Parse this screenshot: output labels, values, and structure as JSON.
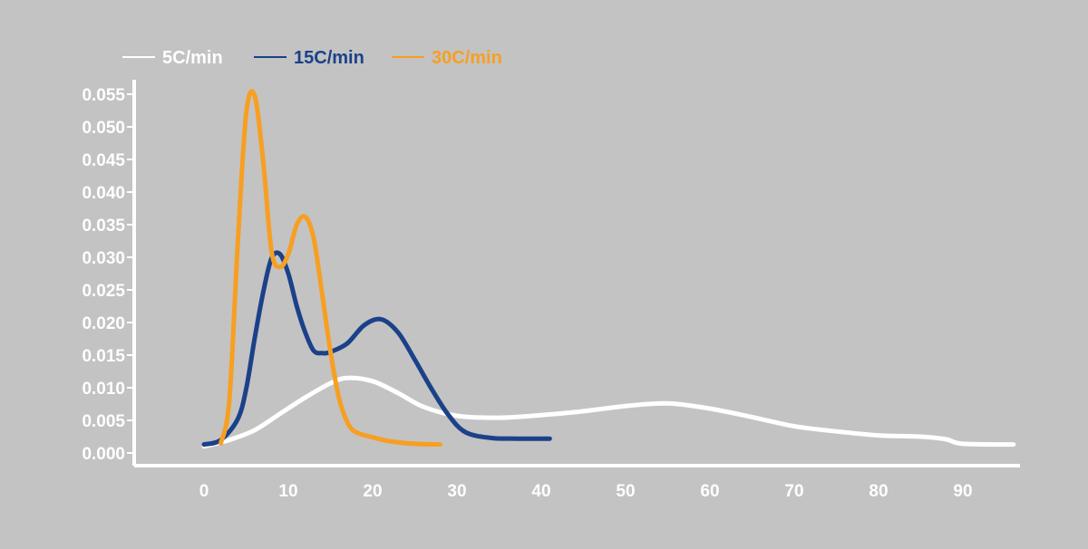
{
  "chart_data": {
    "type": "line",
    "title": "",
    "xlabel": "",
    "ylabel": "",
    "xlim": [
      -8,
      97
    ],
    "ylim": [
      0,
      0.055
    ],
    "x_ticks": [
      0,
      10,
      20,
      30,
      40,
      50,
      60,
      70,
      80,
      90
    ],
    "x_tick_labels": [
      "0",
      "10",
      "20",
      "30",
      "40",
      "50",
      "60",
      "70",
      "80",
      "90"
    ],
    "y_ticks": [
      0,
      0.005,
      0.01,
      0.015,
      0.02,
      0.025,
      0.03,
      0.035,
      0.04,
      0.045,
      0.05,
      0.055
    ],
    "y_tick_labels": [
      "0.000",
      "0.005",
      "0.010",
      "0.015",
      "0.020",
      "0.025",
      "0.030",
      "0.035",
      "0.040",
      "0.045",
      "0.050",
      "0.055"
    ],
    "grid": false,
    "legend_position": "top-left",
    "series": [
      {
        "name": "5C/min",
        "color": "#ffffff",
        "x": [
          0,
          3,
          6,
          9,
          12,
          15,
          17,
          20,
          23,
          26,
          30,
          35,
          40,
          45,
          50,
          55,
          60,
          65,
          70,
          75,
          80,
          85,
          88,
          90,
          96
        ],
        "y": [
          0.001,
          0.002,
          0.0035,
          0.006,
          0.0085,
          0.0107,
          0.0115,
          0.011,
          0.0092,
          0.0071,
          0.0057,
          0.0054,
          0.0058,
          0.0064,
          0.0072,
          0.0076,
          0.0068,
          0.0055,
          0.0041,
          0.0033,
          0.0027,
          0.0025,
          0.0021,
          0.0014,
          0.0013
        ]
      },
      {
        "name": "15C/min",
        "color": "#1b4189",
        "x": [
          0,
          2,
          4,
          5,
          6,
          7,
          8,
          9,
          10,
          11,
          12,
          13,
          14,
          15,
          17,
          19,
          21,
          23,
          25,
          27,
          29,
          31,
          34,
          37,
          41
        ],
        "y": [
          0.0013,
          0.002,
          0.0052,
          0.0098,
          0.0175,
          0.0245,
          0.0298,
          0.0305,
          0.0275,
          0.0225,
          0.0185,
          0.0157,
          0.0153,
          0.0155,
          0.0168,
          0.0196,
          0.0205,
          0.0185,
          0.0143,
          0.0098,
          0.0058,
          0.0032,
          0.0023,
          0.0022,
          0.0022
        ]
      },
      {
        "name": "30C/min",
        "color": "#f79f22",
        "x": [
          2,
          3,
          4,
          5,
          6,
          7,
          8,
          9,
          10,
          11,
          12,
          13,
          14,
          15,
          16,
          17,
          18,
          20,
          22,
          25,
          28
        ],
        "y": [
          0.0015,
          0.008,
          0.032,
          0.052,
          0.0548,
          0.045,
          0.031,
          0.0285,
          0.0305,
          0.035,
          0.0362,
          0.033,
          0.0245,
          0.0155,
          0.0085,
          0.0047,
          0.0032,
          0.0024,
          0.0018,
          0.0014,
          0.0013
        ]
      }
    ]
  }
}
